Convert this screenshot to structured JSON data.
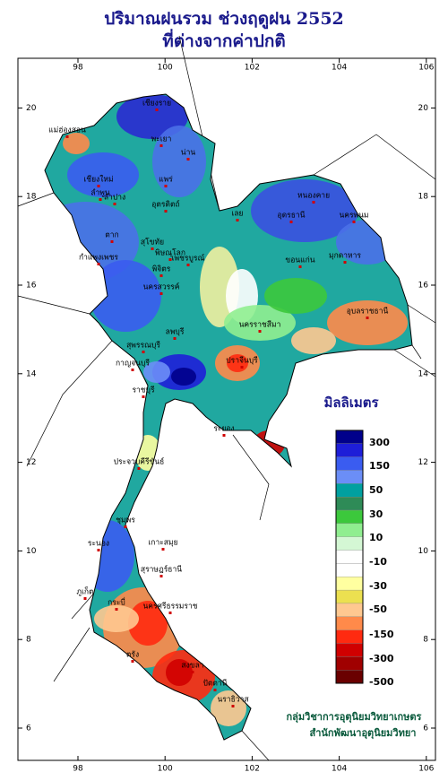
{
  "header": {
    "title_line1": "ปริมาณฝนรวม ช่วงฤดูฝน 2552",
    "title_line2": "ที่ต่างจากค่าปกติ"
  },
  "axes": {
    "lon_ticks": [
      98,
      100,
      102,
      104,
      106
    ],
    "lat_ticks": [
      6,
      8,
      10,
      12,
      14,
      16,
      18,
      20
    ]
  },
  "legend": {
    "title": "มิลลิเมตร",
    "labels": [
      "300",
      "150",
      "50",
      "30",
      "10",
      "-10",
      "-30",
      "-50",
      "-150",
      "-300",
      "-500"
    ],
    "colors": [
      "#00008b",
      "#1e1ed8",
      "#3a5cf0",
      "#6b8ef7",
      "#00a0a0",
      "#2e8b57",
      "#3cc83c",
      "#90ee90",
      "#d4f7d4",
      "#ffffff",
      "#ffffff",
      "#ffffa0",
      "#ece050",
      "#ffc890",
      "#ff8a4a",
      "#ff2a10",
      "#d00000",
      "#a00000",
      "#6a0000"
    ]
  },
  "places": [
    "เชียงราย",
    "แม่ฮ่องสอน",
    "เชียงใหม่",
    "ลำพูน",
    "ลำปาง",
    "น่าน",
    "พะเยา",
    "แพร่",
    "อุตรดิตถ์",
    "ตาก",
    "สุโขทัย",
    "พิษณุโลก",
    "กำแพงเพชร",
    "พิจิตร",
    "เพชรบูรณ์",
    "นครสวรรค์",
    "เลย",
    "หนองคาย",
    "อุดรธานี",
    "นครพนม",
    "มุกดาหาร",
    "ขอนแก่น",
    "อุบลราชธานี",
    "นครราชสีมา",
    "ลพบุรี",
    "สุพรรณบุรี",
    "กาญจนบุรี",
    "ราชบุรี",
    "ปราจีนบุรี",
    "ระยอง",
    "ประจวบคีรีขันธ์",
    "ชุมพร",
    "ระนอง",
    "สุราษฎร์ธานี",
    "นครศรีธรรมราช",
    "ภูเก็ต",
    "กระบี่",
    "ตรัง",
    "สงขลา",
    "ปัตตานี",
    "นราธิวาส",
    "เกาะสมุย"
  ],
  "credits": {
    "line1": "กลุ่มวิชาการอุตุนิยมวิทยาเกษตร",
    "line2": "สำนักพัฒนาอุตุนิยมวิทยา"
  }
}
